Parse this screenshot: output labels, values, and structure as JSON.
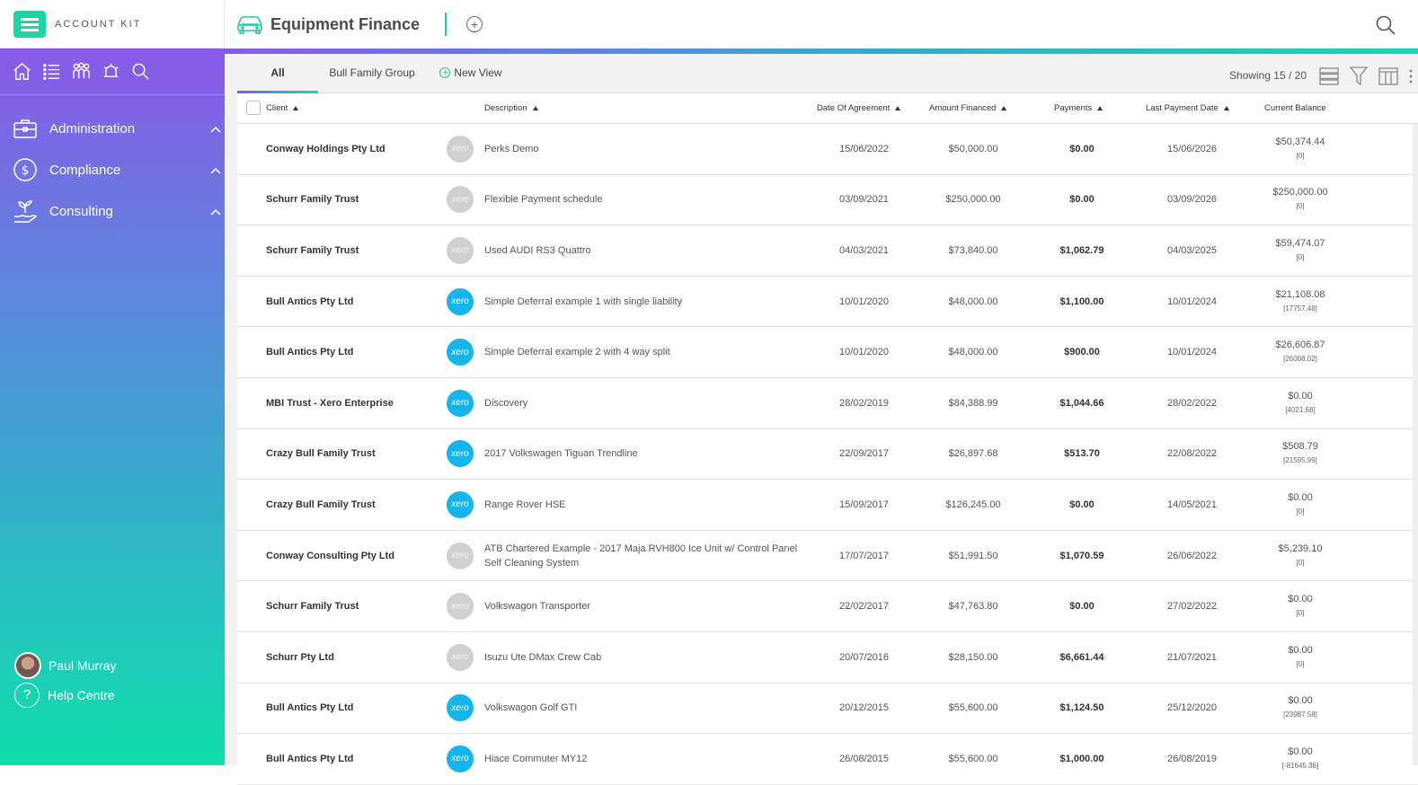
{
  "brand": {
    "name": "ACCOUNT KIT"
  },
  "sidebar": {
    "icons": [
      "home-icon",
      "list-icon",
      "people-icon",
      "alarm-icon",
      "search-icon"
    ],
    "items": [
      {
        "label": "Administration",
        "icon": "briefcase-icon"
      },
      {
        "label": "Compliance",
        "icon": "dollar-circle-icon"
      },
      {
        "label": "Consulting",
        "icon": "hand-plant-icon"
      }
    ],
    "user": {
      "name": "Paul Murray"
    },
    "help": {
      "label": "Help Centre"
    }
  },
  "header": {
    "title": "Equipment Finance",
    "icon": "car-icon"
  },
  "tabs": [
    {
      "label": "All"
    },
    {
      "label": "Bull Family Group"
    },
    {
      "label": "New View"
    }
  ],
  "showing": "Showing 15 / 20",
  "columns": {
    "client": "Client",
    "description": "Description",
    "date": "Date Of Agreement",
    "amount": "Amount Financed",
    "payments": "Payments",
    "last": "Last Payment Date",
    "balance": "Current Balance"
  },
  "xero_label": "xero",
  "rows": [
    {
      "client": "Conway Holdings Pty Ltd",
      "xero": false,
      "description": "Perks Demo",
      "date": "15/06/2022",
      "amount": "$50,000.00",
      "payments": "$0.00",
      "last": "15/06/2026",
      "balance": "$50,374.44",
      "balance_sub": "[0]"
    },
    {
      "client": "Schurr Family Trust",
      "xero": false,
      "description": "Flexible Payment schedule",
      "date": "03/09/2021",
      "amount": "$250,000.00",
      "payments": "$0.00",
      "last": "03/09/2026",
      "balance": "$250,000.00",
      "balance_sub": "[0]"
    },
    {
      "client": "Schurr Family Trust",
      "xero": false,
      "description": "Used AUDI RS3 Quattro",
      "date": "04/03/2021",
      "amount": "$73,840.00",
      "payments": "$1,062.79",
      "last": "04/03/2025",
      "balance": "$59,474.07",
      "balance_sub": "[0]"
    },
    {
      "client": "Bull Antics Pty Ltd",
      "xero": true,
      "description": "Simple Deferral example 1 with single liability",
      "date": "10/01/2020",
      "amount": "$48,000.00",
      "payments": "$1,100.00",
      "last": "10/01/2024",
      "balance": "$21,108.08",
      "balance_sub": "[17757.48]"
    },
    {
      "client": "Bull Antics Pty Ltd",
      "xero": true,
      "description": "Simple Deferral example 2 with 4 way split",
      "date": "10/01/2020",
      "amount": "$48,000.00",
      "payments": "$900.00",
      "last": "10/01/2024",
      "balance": "$26,606.87",
      "balance_sub": "[26008.02]"
    },
    {
      "client": "MBI Trust - Xero Enterprise",
      "xero": true,
      "description": "Discovery",
      "date": "28/02/2019",
      "amount": "$84,388.99",
      "payments": "$1,044.66",
      "last": "28/02/2022",
      "balance": "$0.00",
      "balance_sub": "[4021.68]"
    },
    {
      "client": "Crazy Bull Family Trust",
      "xero": true,
      "description": "2017 Volkswagen Tiguan Trendline",
      "date": "22/09/2017",
      "amount": "$26,897.68",
      "payments": "$513.70",
      "last": "22/08/2022",
      "balance": "$508.79",
      "balance_sub": "[21595.99]"
    },
    {
      "client": "Crazy Bull Family Trust",
      "xero": true,
      "description": "Range Rover HSE",
      "date": "15/09/2017",
      "amount": "$126,245.00",
      "payments": "$0.00",
      "last": "14/05/2021",
      "balance": "$0.00",
      "balance_sub": "[0]"
    },
    {
      "client": "Conway Consulting Pty Ltd",
      "xero": false,
      "description": "ATB Chartered Example - 2017 Maja RVH800 Ice Unit w/ Control Panel Self Cleaning System",
      "date": "17/07/2017",
      "amount": "$51,991.50",
      "payments": "$1,070.59",
      "last": "26/06/2022",
      "balance": "$5,239.10",
      "balance_sub": "[0]"
    },
    {
      "client": "Schurr Family Trust",
      "xero": false,
      "description": "Volkswagon Transporter",
      "date": "22/02/2017",
      "amount": "$47,763.80",
      "payments": "$0.00",
      "last": "27/02/2022",
      "balance": "$0.00",
      "balance_sub": "[0]"
    },
    {
      "client": "Schurr Pty Ltd",
      "xero": false,
      "description": "Isuzu Ute DMax Crew Cab",
      "date": "20/07/2016",
      "amount": "$28,150.00",
      "payments": "$6,661.44",
      "last": "21/07/2021",
      "balance": "$0.00",
      "balance_sub": "[0]"
    },
    {
      "client": "Bull Antics Pty Ltd",
      "xero": true,
      "description": "Volkswagon Golf GTI",
      "date": "20/12/2015",
      "amount": "$55,600.00",
      "payments": "$1,124.50",
      "last": "25/12/2020",
      "balance": "$0.00",
      "balance_sub": "[23987.58]"
    },
    {
      "client": "Bull Antics Pty Ltd",
      "xero": true,
      "description": "Hiace Commuter MY12",
      "date": "26/08/2015",
      "amount": "$55,600.00",
      "payments": "$1,000.00",
      "last": "26/08/2019",
      "balance": "$0.00",
      "balance_sub": "[-81645.36]"
    }
  ],
  "colors": {
    "accent": "#1fd3a3",
    "purple": "#8a59e8",
    "xero": "#13b5ea"
  }
}
